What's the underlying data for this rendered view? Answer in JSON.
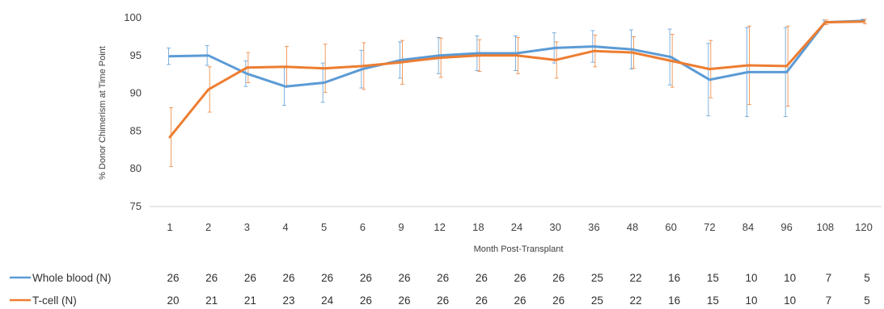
{
  "chart_data": {
    "type": "line",
    "title": "",
    "xlabel": "Month Post-Transplant",
    "ylabel": "% Donor Chimerism at Time Point",
    "ylim": [
      75,
      100
    ],
    "yticks": [
      75,
      80,
      85,
      90,
      95,
      100
    ],
    "grid": false,
    "legend_position": "bottom",
    "categories": [
      "1",
      "2",
      "3",
      "4",
      "5",
      "6",
      "9",
      "12",
      "18",
      "24",
      "30",
      "36",
      "48",
      "60",
      "72",
      "84",
      "96",
      "108",
      "120"
    ],
    "series": [
      {
        "name": "Whole blood (N)",
        "color": "#5b9bd5",
        "values": [
          94.9,
          95.0,
          92.6,
          90.9,
          91.4,
          93.2,
          94.4,
          95.0,
          95.3,
          95.3,
          96.0,
          96.2,
          95.8,
          94.8,
          91.8,
          92.8,
          92.8,
          99.4,
          99.6
        ],
        "errors": [
          1.1,
          1.3,
          1.7,
          2.5,
          2.6,
          2.5,
          2.4,
          2.4,
          2.3,
          2.3,
          2.0,
          2.1,
          2.6,
          3.7,
          4.8,
          5.9,
          5.9,
          0.3,
          0.2
        ],
        "n": [
          "26",
          "26",
          "26",
          "26",
          "26",
          "26",
          "26",
          "26",
          "26",
          "26",
          "26",
          "25",
          "22",
          "16",
          "15",
          "10",
          "10",
          "7",
          "5"
        ]
      },
      {
        "name": "T-cell (N)",
        "color": "#ed7d31",
        "values": [
          84.2,
          90.5,
          93.4,
          93.5,
          93.3,
          93.6,
          94.1,
          94.7,
          95.0,
          95.0,
          94.4,
          95.6,
          95.4,
          94.3,
          93.2,
          93.7,
          93.6,
          99.4,
          99.5
        ],
        "errors": [
          3.9,
          3.0,
          2.0,
          2.7,
          3.2,
          3.1,
          2.9,
          2.6,
          2.1,
          2.4,
          2.4,
          2.1,
          2.1,
          3.5,
          3.8,
          5.2,
          5.3,
          0.3,
          0.3
        ],
        "n": [
          "20",
          "21",
          "21",
          "23",
          "24",
          "26",
          "26",
          "26",
          "26",
          "26",
          "26",
          "25",
          "22",
          "16",
          "15",
          "10",
          "10",
          "7",
          "5"
        ]
      }
    ]
  }
}
